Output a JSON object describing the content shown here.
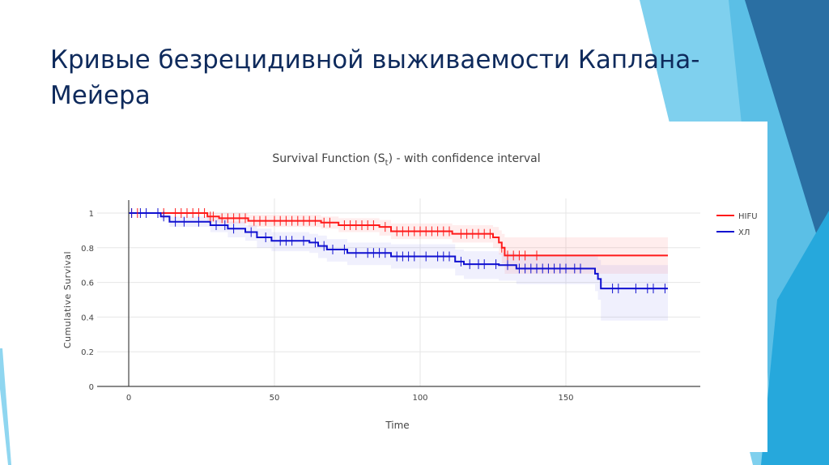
{
  "slide": {
    "title": "Кривые безрецидивной выживаемости Каплана-Мейера"
  },
  "colors": {
    "title": "#0e2a5c",
    "hifu": "#ff1a1a",
    "xl": "#1010d0",
    "deco_dark": "#2a6fa3",
    "deco_light": "#7fd0ee",
    "deco_mid": "#26a8dc"
  },
  "chart_data": {
    "type": "line",
    "title_main": "Survival Function (S",
    "title_sub": "t",
    "title_rest": ") - with confidence interval",
    "xlabel": "Time",
    "ylabel": "Cumulative Survival",
    "xlim": [
      -20,
      195
    ],
    "ylim": [
      0,
      1.05
    ],
    "xticks": [
      "0",
      "50",
      "100",
      "150"
    ],
    "yticks": [
      "0",
      "0.2",
      "0.4",
      "0.6",
      "0.8",
      "1"
    ],
    "grid": true,
    "legend_position": "right",
    "series": [
      {
        "name": "HIFU",
        "color": "#ff1a1a",
        "end_time": 185,
        "steps": [
          [
            0,
            1,
            1,
            1
          ],
          [
            27,
            0.98,
            0.95,
            1
          ],
          [
            31,
            0.97,
            0.94,
            1
          ],
          [
            41,
            0.955,
            0.92,
            0.99
          ],
          [
            66,
            0.945,
            0.91,
            0.98
          ],
          [
            72,
            0.93,
            0.89,
            0.97
          ],
          [
            86,
            0.92,
            0.87,
            0.96
          ],
          [
            90,
            0.895,
            0.85,
            0.94
          ],
          [
            111,
            0.88,
            0.83,
            0.93
          ],
          [
            125,
            0.86,
            0.8,
            0.92
          ],
          [
            127,
            0.83,
            0.76,
            0.9
          ],
          [
            128,
            0.8,
            0.71,
            0.88
          ],
          [
            129,
            0.755,
            0.65,
            0.86
          ]
        ],
        "censored": [
          1,
          3,
          10,
          12,
          16,
          18,
          20,
          22,
          24,
          26,
          28,
          29,
          32,
          34,
          36,
          38,
          40,
          43,
          45,
          47,
          50,
          52,
          54,
          56,
          58,
          60,
          62,
          64,
          67,
          69,
          74,
          76,
          78,
          80,
          82,
          84,
          88,
          92,
          94,
          96,
          98,
          100,
          102,
          104,
          106,
          108,
          110,
          114,
          116,
          118,
          120,
          122,
          124,
          128,
          130,
          132,
          134,
          136,
          140
        ]
      },
      {
        "name": "ХЛ",
        "color": "#1010d0",
        "end_time": 185,
        "steps": [
          [
            0,
            1,
            1,
            1
          ],
          [
            11,
            0.98,
            0.96,
            1
          ],
          [
            14,
            0.95,
            0.92,
            0.98
          ],
          [
            28,
            0.93,
            0.89,
            0.97
          ],
          [
            34,
            0.91,
            0.86,
            0.95
          ],
          [
            40,
            0.89,
            0.84,
            0.93
          ],
          [
            44,
            0.86,
            0.8,
            0.91
          ],
          [
            49,
            0.84,
            0.78,
            0.89
          ],
          [
            62,
            0.83,
            0.77,
            0.88
          ],
          [
            65,
            0.81,
            0.74,
            0.87
          ],
          [
            68,
            0.79,
            0.72,
            0.85
          ],
          [
            75,
            0.77,
            0.7,
            0.83
          ],
          [
            90,
            0.75,
            0.68,
            0.82
          ],
          [
            112,
            0.72,
            0.64,
            0.79
          ],
          [
            115,
            0.705,
            0.62,
            0.78
          ],
          [
            127,
            0.7,
            0.61,
            0.77
          ],
          [
            133,
            0.68,
            0.59,
            0.76
          ],
          [
            160,
            0.65,
            0.55,
            0.75
          ],
          [
            161,
            0.62,
            0.5,
            0.73
          ],
          [
            162,
            0.565,
            0.38,
            0.7
          ]
        ],
        "censored": [
          1,
          4,
          6,
          10,
          12,
          16,
          19,
          24,
          30,
          33,
          36,
          42,
          47,
          52,
          54,
          56,
          60,
          64,
          67,
          70,
          74,
          78,
          82,
          84,
          86,
          88,
          92,
          94,
          96,
          98,
          102,
          106,
          108,
          110,
          114,
          117,
          120,
          122,
          126,
          130,
          134,
          136,
          138,
          140,
          142,
          144,
          146,
          148,
          150,
          153,
          155,
          166,
          168,
          174,
          178,
          180,
          184
        ]
      }
    ],
    "step_columns": [
      "time",
      "survival",
      "ci_lower",
      "ci_upper"
    ]
  }
}
